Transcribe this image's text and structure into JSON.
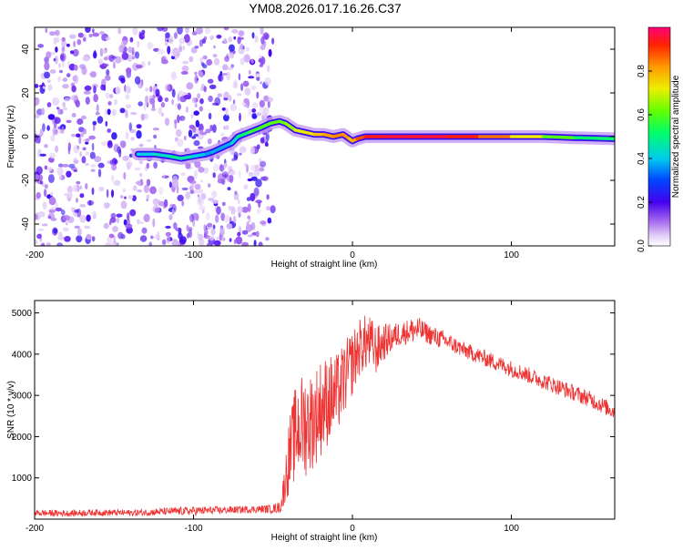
{
  "chart_data": [
    {
      "type": "heatmap",
      "title": "YM08.2026.017.16.26.C37",
      "xlabel": "Height of straight line (km)",
      "ylabel": "Frequency (Hz)",
      "xlim": [
        -200,
        165
      ],
      "ylim": [
        -50,
        50
      ],
      "x_ticks": [
        -200,
        -100,
        0,
        100
      ],
      "y_ticks": [
        -40,
        -20,
        0,
        20,
        40
      ],
      "noise_region_x": [
        -200,
        -50
      ],
      "signal_track": {
        "x": [
          -135,
          -125,
          -115,
          -108,
          -100,
          -92,
          -88,
          -76,
          -72,
          -65,
          -58,
          -52,
          -46,
          -42,
          -36,
          -30,
          -24,
          -18,
          -12,
          -6,
          -2,
          0,
          3,
          8,
          20,
          40,
          60,
          80,
          100,
          120,
          140,
          165
        ],
        "frequency": [
          -8,
          -8,
          -9,
          -10,
          -9,
          -8,
          -7,
          -3,
          0,
          2,
          4,
          6,
          7,
          6,
          3,
          2,
          1,
          1,
          0,
          1,
          -1,
          -2,
          -1,
          0,
          0,
          0,
          0,
          0,
          0,
          0,
          -0.5,
          -1
        ],
        "amplitude": [
          0.4,
          0.42,
          0.45,
          0.5,
          0.42,
          0.38,
          0.35,
          0.4,
          0.45,
          0.55,
          0.58,
          0.6,
          0.62,
          0.6,
          0.7,
          0.72,
          0.75,
          0.8,
          0.82,
          0.85,
          0.8,
          0.75,
          0.85,
          0.92,
          0.95,
          0.95,
          0.95,
          0.9,
          0.8,
          0.65,
          0.55,
          0.48
        ]
      },
      "colorbar": {
        "label": "Normalized spectral amplitude",
        "range": [
          0,
          1
        ],
        "ticks": [
          "0.0",
          "0.2",
          "0.4",
          "0.6",
          "0.8"
        ],
        "colormap": "gist_rainbow"
      }
    },
    {
      "type": "line",
      "xlabel": "Height of straight line (km)",
      "ylabel": "SNR (10 * v/v)",
      "xlim": [
        -200,
        165
      ],
      "ylim": [
        0,
        5300
      ],
      "x_ticks": [
        -200,
        -100,
        0,
        100
      ],
      "y_ticks": [
        1000,
        2000,
        3000,
        4000,
        5000
      ],
      "series": [
        {
          "name": "SNR",
          "color": "#ee3333",
          "x": [
            -200,
            -180,
            -160,
            -140,
            -120,
            -100,
            -90,
            -80,
            -70,
            -60,
            -50,
            -45,
            -40,
            -35,
            -30,
            -25,
            -20,
            -15,
            -10,
            -5,
            0,
            5,
            10,
            15,
            20,
            25,
            30,
            35,
            40,
            45,
            50,
            60,
            70,
            80,
            90,
            100,
            110,
            120,
            130,
            140,
            150,
            160,
            165
          ],
          "values": [
            150,
            140,
            160,
            150,
            180,
            200,
            210,
            220,
            230,
            240,
            250,
            300,
            1500,
            2200,
            2300,
            2400,
            2700,
            2900,
            3000,
            3400,
            3800,
            4200,
            4300,
            4100,
            4300,
            4400,
            4500,
            4550,
            4600,
            4550,
            4450,
            4300,
            4100,
            3950,
            3800,
            3650,
            3500,
            3350,
            3200,
            3050,
            2900,
            2700,
            2600
          ],
          "spread": [
            80,
            80,
            80,
            80,
            90,
            110,
            100,
            90,
            90,
            90,
            110,
            150,
            900,
            1200,
            1300,
            1200,
            1200,
            1100,
            1000,
            900,
            800,
            700,
            700,
            600,
            450,
            350,
            300,
            300,
            350,
            250,
            250,
            220,
            200,
            200,
            200,
            200,
            200,
            200,
            200,
            200,
            200,
            200,
            200
          ]
        }
      ]
    }
  ]
}
